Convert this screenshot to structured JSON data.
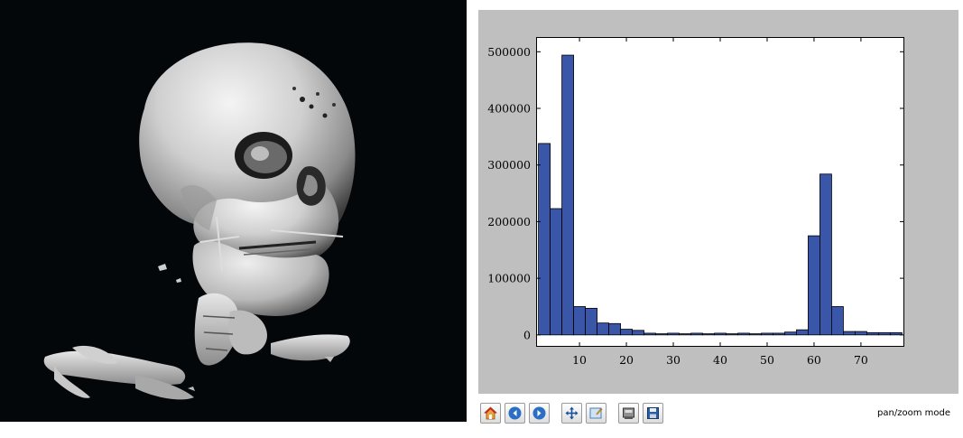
{
  "toolbar": {
    "buttons": [
      {
        "name": "home-button",
        "icon": "home-icon"
      },
      {
        "name": "back-button",
        "icon": "arrow-left-icon"
      },
      {
        "name": "forward-button",
        "icon": "arrow-right-icon"
      },
      {
        "name": "pan-button",
        "icon": "move-arrows-icon"
      },
      {
        "name": "zoom-button",
        "icon": "zoom-rect-icon"
      },
      {
        "name": "subplots-button",
        "icon": "subplots-icon"
      },
      {
        "name": "save-button",
        "icon": "floppy-disk-icon"
      }
    ],
    "mode_text": "pan/zoom mode"
  },
  "colors": {
    "bar_fill": "#3a56a8",
    "figure_background": "#bfbfbf",
    "render_background": "#04070a"
  },
  "chart_data": {
    "type": "bar",
    "x": [
      2.5,
      5.0,
      7.5,
      10.0,
      12.5,
      15.0,
      17.5,
      20.0,
      22.5,
      25.0,
      27.5,
      30.0,
      32.5,
      35.0,
      37.5,
      40.0,
      42.5,
      45.0,
      47.5,
      50.0,
      52.5,
      55.0,
      57.5,
      60.0,
      62.5,
      65.0,
      67.5,
      70.0,
      72.5,
      75.0,
      77.5
    ],
    "values": [
      338000,
      223000,
      494000,
      50000,
      47000,
      21000,
      20000,
      10000,
      8000,
      3000,
      2000,
      3000,
      2000,
      3000,
      2000,
      3000,
      2000,
      3000,
      2000,
      3000,
      3000,
      5000,
      9000,
      175000,
      284000,
      50000,
      6000,
      6000,
      4000,
      4000,
      4000
    ],
    "bar_width": 2.5,
    "xlim": [
      0.75,
      79.25
    ],
    "ylim": [
      -21000,
      526000
    ],
    "xticks": [
      10,
      20,
      30,
      40,
      50,
      60,
      70
    ],
    "yticks": [
      0,
      100000,
      200000,
      300000,
      400000,
      500000
    ],
    "grid": false
  }
}
